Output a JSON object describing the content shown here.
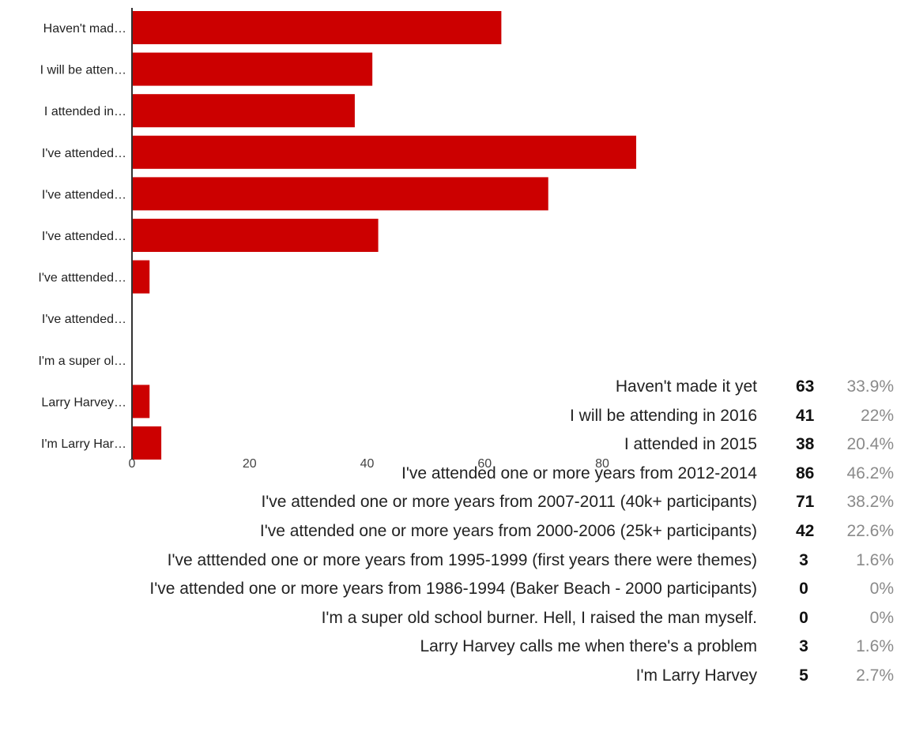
{
  "chart_data": {
    "type": "bar",
    "orientation": "horizontal",
    "categories": [
      "Haven't mad…",
      "I will be atten…",
      "I attended in…",
      "I've attended…",
      "I've attended…",
      "I've attended…",
      "I've atttended…",
      "I've attended…",
      "I'm a super ol…",
      "Larry Harvey…",
      "I'm Larry Har…"
    ],
    "values": [
      63,
      41,
      38,
      86,
      71,
      42,
      3,
      0,
      0,
      3,
      5
    ],
    "xlim": [
      0,
      86
    ],
    "xticks": [
      "0",
      "20",
      "40",
      "60",
      "80"
    ],
    "grid": false,
    "bar_color": "#cc0000"
  },
  "results": [
    {
      "label": "Haven't made it yet",
      "count": "63",
      "percent": "33.9%"
    },
    {
      "label": "I will be attending in 2016",
      "count": "41",
      "percent": "22%"
    },
    {
      "label": "I attended in 2015",
      "count": "38",
      "percent": "20.4%"
    },
    {
      "label": "I've attended one or more years from 2012-2014",
      "count": "86",
      "percent": "46.2%"
    },
    {
      "label": "I've attended one or more years from 2007-2011 (40k+ participants)",
      "count": "71",
      "percent": "38.2%"
    },
    {
      "label": "I've attended one or more years from 2000-2006 (25k+ participants)",
      "count": "42",
      "percent": "22.6%"
    },
    {
      "label": "I've atttended one or more years from 1995-1999 (first years there were themes)",
      "count": "3",
      "percent": "1.6%"
    },
    {
      "label": "I've attended one or more years from 1986-1994 (Baker Beach - 2000 participants)",
      "count": "0",
      "percent": "0%"
    },
    {
      "label": "I'm a super old school burner. Hell, I raised the man myself.",
      "count": "0",
      "percent": "0%"
    },
    {
      "label": "Larry Harvey calls me when there's a problem",
      "count": "3",
      "percent": "1.6%"
    },
    {
      "label": "I'm Larry Harvey",
      "count": "5",
      "percent": "2.7%"
    }
  ]
}
